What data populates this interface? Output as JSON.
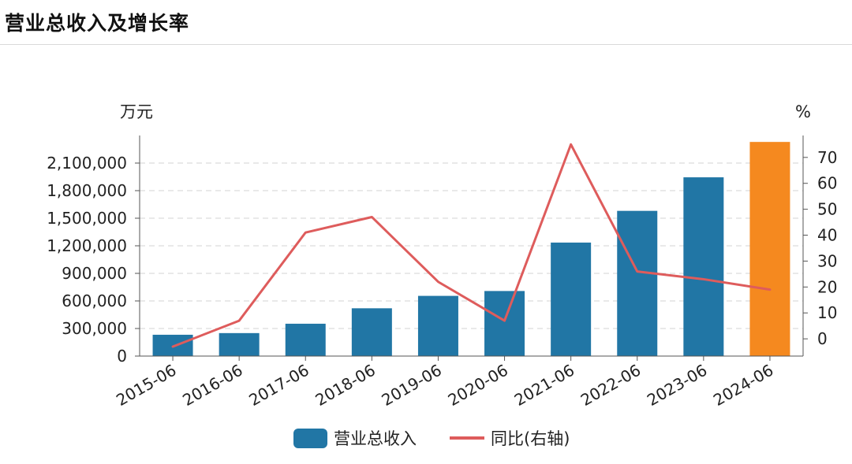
{
  "page": {
    "title": "营业总收入及增长率"
  },
  "colors": {
    "bar": "#2176a5",
    "bar_highlight": "#f5891f",
    "line": "#de5c5c",
    "axis": "#555555",
    "grid": "#d3d3d3"
  },
  "chart_data": {
    "type": "bar",
    "title": "",
    "categories": [
      "2015-06",
      "2016-06",
      "2017-06",
      "2018-06",
      "2019-06",
      "2020-06",
      "2021-06",
      "2022-06",
      "2023-06",
      "2024-06"
    ],
    "series": [
      {
        "name": "营业总收入",
        "type": "bar",
        "axis": "left",
        "values": [
          232000,
          250000,
          352000,
          520000,
          655000,
          708000,
          1235000,
          1580000,
          1945000,
          2330000
        ],
        "highlight_index": 9
      },
      {
        "name": "同比(右轴)",
        "type": "line",
        "axis": "right",
        "values": [
          -3,
          7,
          41,
          47,
          22,
          7,
          75,
          26,
          23,
          19
        ]
      }
    ],
    "y_left": {
      "unit": "万元",
      "ticks": [
        0,
        300000,
        600000,
        900000,
        1200000,
        1500000,
        1800000,
        2100000
      ],
      "tick_labels": [
        "0",
        "300,000",
        "600,000",
        "900,000",
        "1,200,000",
        "1,500,000",
        "1,800,000",
        "2,100,000"
      ],
      "ylim": [
        0,
        2400000
      ]
    },
    "y_right": {
      "unit": "%",
      "ticks": [
        0,
        10,
        20,
        30,
        40,
        50,
        60,
        70
      ],
      "tick_labels": [
        "0",
        "10",
        "20",
        "30",
        "40",
        "50",
        "60",
        "70"
      ],
      "ylim": [
        -6.65,
        78.45
      ]
    },
    "grid": true,
    "legend_position": "bottom-center"
  }
}
